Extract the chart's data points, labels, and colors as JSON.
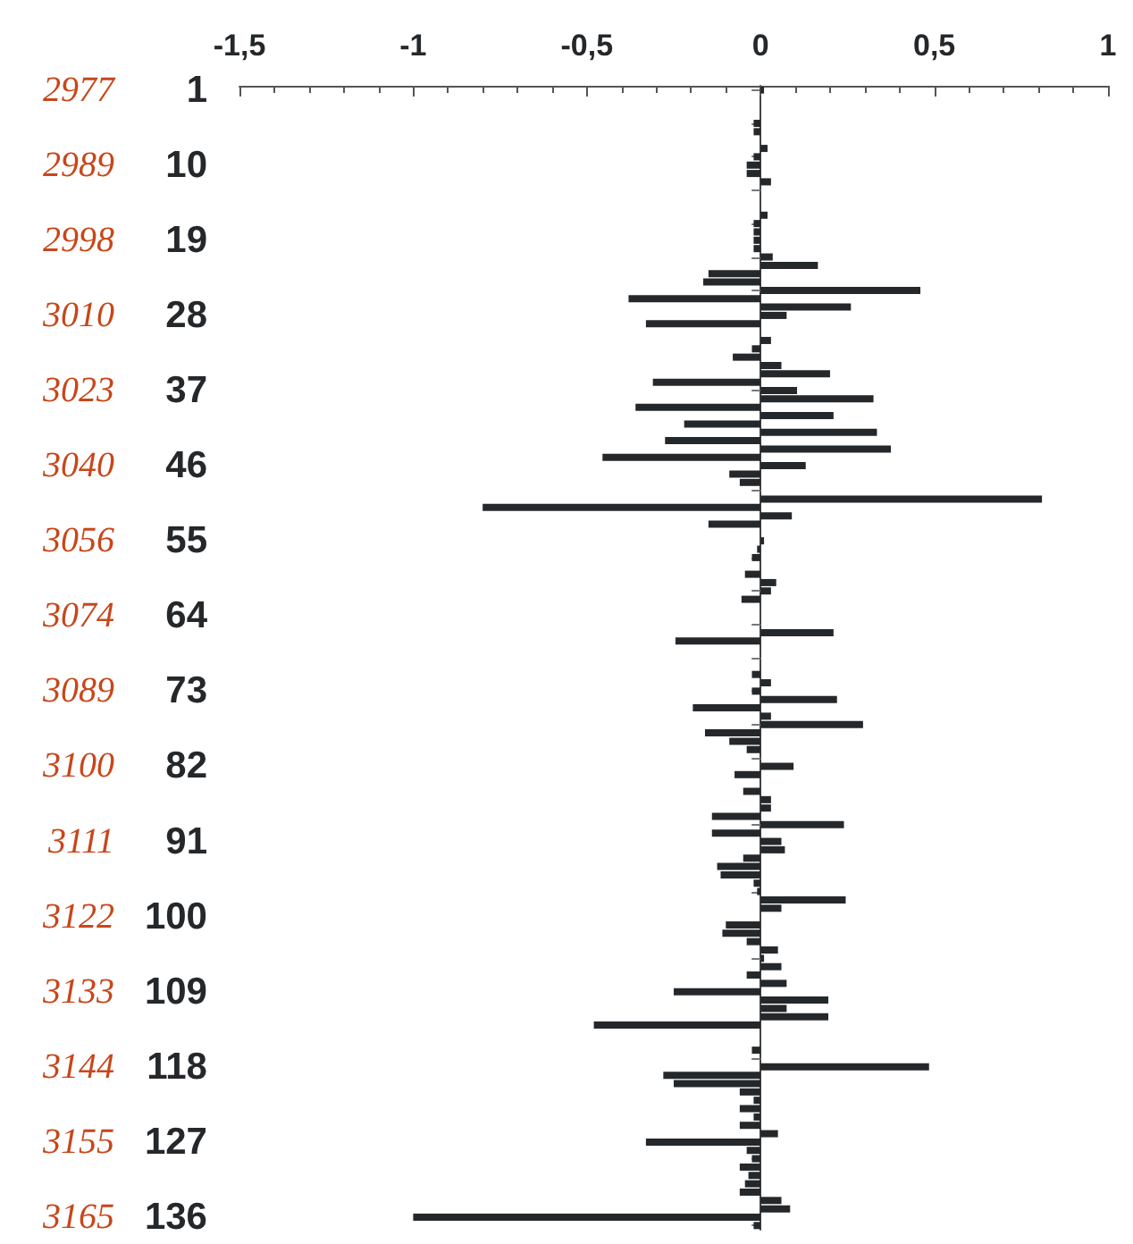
{
  "chart_data": {
    "type": "bar",
    "orientation": "horizontal",
    "color": "#25282b",
    "categories": [
      "1",
      null,
      null,
      null,
      null,
      null,
      null,
      null,
      null,
      "10",
      null,
      null,
      null,
      null,
      null,
      null,
      null,
      null,
      "19",
      null,
      null,
      null,
      null,
      null,
      null,
      null,
      null,
      "28",
      null,
      null,
      null,
      null,
      null,
      null,
      null,
      null,
      "37",
      null,
      null,
      null,
      null,
      null,
      null,
      null,
      null,
      "46",
      null,
      null,
      null,
      null,
      null,
      null,
      null,
      null,
      "55",
      null,
      null,
      null,
      null,
      null,
      null,
      null,
      null,
      "64",
      null,
      null,
      null,
      null,
      null,
      null,
      null,
      null,
      "73",
      null,
      null,
      null,
      null,
      null,
      null,
      null,
      null,
      "82",
      null,
      null,
      null,
      null,
      null,
      null,
      null,
      null,
      "91",
      null,
      null,
      null,
      null,
      null,
      null,
      null,
      null,
      "100",
      null,
      null,
      null,
      null,
      null,
      null,
      null,
      null,
      "109",
      null,
      null,
      null,
      null,
      null,
      null,
      null,
      null,
      "118",
      null,
      null,
      null,
      null,
      null,
      null,
      null,
      null,
      "127",
      null,
      null,
      null,
      null,
      null,
      null,
      null,
      null,
      "136",
      null
    ],
    "values": [
      0.01,
      0,
      0,
      0,
      -0.02,
      -0.02,
      0,
      0.02,
      -0.02,
      -0.04,
      -0.04,
      0.03,
      0,
      0,
      0,
      0.02,
      -0.02,
      -0.02,
      -0.02,
      -0.02,
      0.035,
      0.165,
      -0.15,
      -0.165,
      0.46,
      -0.38,
      0.26,
      0.075,
      -0.33,
      0,
      0.03,
      -0.025,
      -0.08,
      0.06,
      0.2,
      -0.31,
      0.105,
      0.325,
      -0.36,
      0.21,
      -0.22,
      0.335,
      -0.275,
      0.375,
      -0.455,
      0.13,
      -0.09,
      -0.06,
      0,
      0.81,
      -0.8,
      0.09,
      -0.15,
      0,
      0.01,
      -0.01,
      -0.025,
      0,
      -0.045,
      0.045,
      0.03,
      -0.055,
      0,
      0,
      0,
      0.21,
      -0.245,
      0,
      0,
      0,
      -0.025,
      0.03,
      -0.025,
      0.22,
      -0.195,
      0.03,
      0.295,
      -0.16,
      -0.09,
      -0.04,
      0,
      0.095,
      -0.075,
      0,
      -0.05,
      0.03,
      0.03,
      -0.14,
      0.24,
      -0.14,
      0.06,
      0.07,
      -0.05,
      -0.125,
      -0.115,
      -0.02,
      -0.01,
      0.245,
      0.06,
      0,
      -0.1,
      -0.11,
      -0.04,
      0.05,
      0.01,
      0.06,
      -0.04,
      0.075,
      -0.25,
      0.195,
      0.075,
      0.195,
      -0.48,
      0,
      0,
      -0.025,
      0,
      0.485,
      -0.28,
      -0.25,
      -0.06,
      -0.02,
      -0.06,
      -0.02,
      -0.06,
      0.05,
      -0.33,
      -0.04,
      -0.025,
      -0.06,
      -0.035,
      -0.045,
      -0.06,
      0.06,
      0.085,
      -1.0,
      -0.02
    ],
    "xlim": [
      -1.5,
      1
    ],
    "xticks": [
      {
        "value": -1.5,
        "label": "-1,5"
      },
      {
        "value": -1,
        "label": "-1"
      },
      {
        "value": -0.5,
        "label": "-0,5"
      },
      0,
      {
        "value": 0.5,
        "label": "0,5"
      },
      1
    ],
    "annotations": [
      "2977",
      "2989",
      "2998",
      "3010",
      "3023",
      "3040",
      "3056",
      "3074",
      "3089",
      "3100",
      "3111",
      "3122",
      "3133",
      "3144",
      "3155",
      "3165"
    ]
  }
}
